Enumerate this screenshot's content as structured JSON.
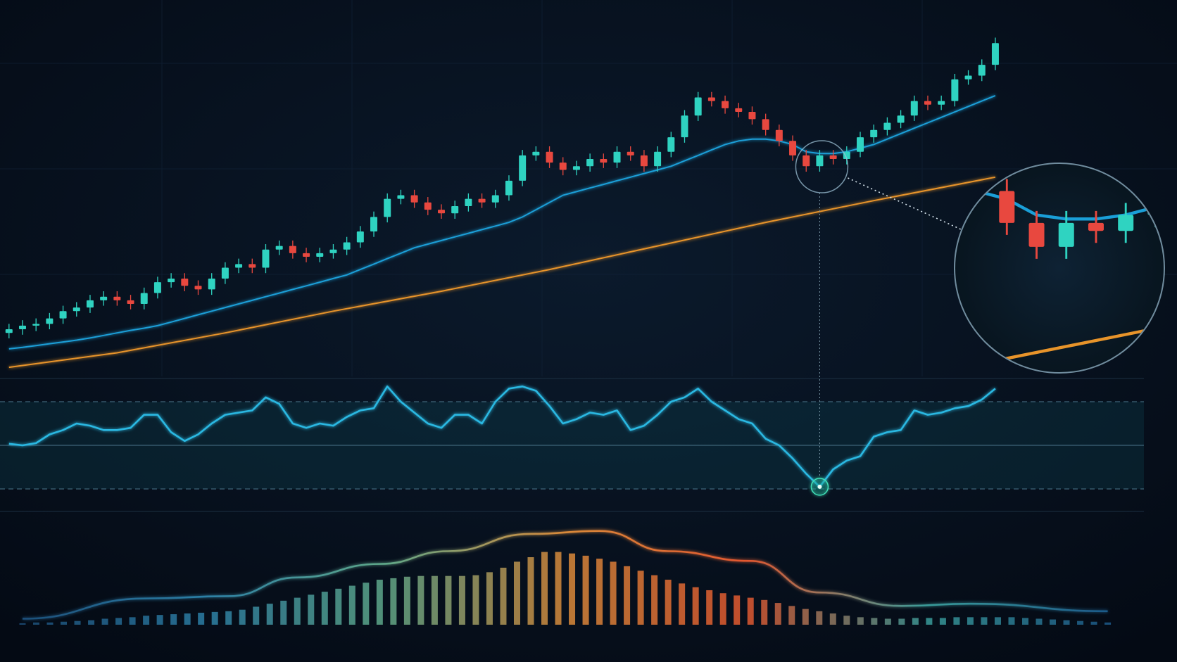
{
  "chart_data": [
    {
      "type": "candlestick",
      "up_color": "#2fd3c1",
      "down_color": "#e8483f",
      "ylim": [
        0,
        100
      ],
      "open": [
        12,
        13,
        14,
        14.5,
        16,
        18,
        19,
        21,
        22,
        21,
        20,
        23,
        26,
        27,
        25,
        24,
        27,
        30,
        31,
        30,
        35,
        36,
        34,
        33,
        34,
        35,
        37,
        40,
        44,
        49,
        50,
        48,
        46,
        45,
        47,
        49,
        48,
        50,
        54,
        61,
        62,
        59,
        57,
        58,
        60,
        59,
        62,
        61,
        58,
        62,
        66,
        72,
        77,
        76,
        74,
        73,
        71,
        68,
        65,
        61,
        58,
        61,
        60,
        62,
        66,
        68,
        70,
        72,
        76,
        75,
        76,
        82,
        83,
        86
      ],
      "high": [
        14.5,
        15.5,
        16,
        17.5,
        19.5,
        20.5,
        22.5,
        23.5,
        23.5,
        22.5,
        24.5,
        27.5,
        28.5,
        28.5,
        26.5,
        28.5,
        31.5,
        32.5,
        32.5,
        36.5,
        37.5,
        37.5,
        35.5,
        35.5,
        36.5,
        38.5,
        41.5,
        45.5,
        50.5,
        51.5,
        51.5,
        49.5,
        47.5,
        48.5,
        50.5,
        50.5,
        51.5,
        55.5,
        62.5,
        63.5,
        63.5,
        60.5,
        59.5,
        61.5,
        61.5,
        63.5,
        63.5,
        62.5,
        63.5,
        67.5,
        73.5,
        78.5,
        78.5,
        77.5,
        75.5,
        74.5,
        72.5,
        69.5,
        66.5,
        62.5,
        62.5,
        62.5,
        63.5,
        67.5,
        69.5,
        71.5,
        73.5,
        77.5,
        77.5,
        77.5,
        83.5,
        84.5,
        87.5,
        93.5
      ],
      "low": [
        10.5,
        11.5,
        12.5,
        13,
        14.5,
        16.5,
        17.5,
        19.5,
        19.5,
        18.5,
        18.5,
        21.5,
        24.5,
        23.5,
        22.5,
        22.5,
        25.5,
        28.5,
        28.5,
        28.5,
        33.5,
        32.5,
        31.5,
        31.5,
        32.5,
        33.5,
        35.5,
        38.5,
        42.5,
        47.5,
        46.5,
        44.5,
        43.5,
        43.5,
        45.5,
        46.5,
        46.5,
        48.5,
        52.5,
        59.5,
        57.5,
        55.5,
        55.5,
        56.5,
        57.5,
        57.5,
        59.5,
        56.5,
        56.5,
        60.5,
        64.5,
        70.5,
        74.5,
        72.5,
        71.5,
        69.5,
        66.5,
        63.5,
        59.5,
        56.5,
        56.5,
        58.5,
        58.5,
        60.5,
        64.5,
        66.5,
        68.5,
        70.5,
        73.5,
        73.5,
        74.5,
        80.5,
        81.5,
        84.5
      ],
      "close": [
        13,
        14,
        14.5,
        16,
        18,
        19,
        21,
        22,
        21,
        20,
        23,
        26,
        27,
        25,
        24,
        27,
        30,
        31,
        30,
        35,
        36,
        34,
        33,
        34,
        35,
        37,
        40,
        44,
        49,
        50,
        48,
        46,
        45,
        47,
        49,
        48,
        50,
        54,
        61,
        62,
        59,
        57,
        58,
        60,
        59,
        62,
        61,
        58,
        62,
        66,
        72,
        77,
        76,
        74,
        73,
        71,
        68,
        65,
        61,
        58,
        61,
        60,
        62,
        66,
        68,
        70,
        72,
        76,
        75,
        76,
        82,
        83,
        86,
        92
      ],
      "moving_averages": [
        {
          "color": "#1a9fd8",
          "values": [
            7.6,
            8,
            8.5,
            9,
            9.5,
            10,
            10.6,
            11.3,
            12,
            12.7,
            13.3,
            14,
            15,
            16,
            17,
            18,
            19,
            20,
            21,
            22,
            23,
            24,
            25,
            26,
            27,
            28,
            29.5,
            31,
            32.5,
            34,
            35.5,
            36.5,
            37.5,
            38.5,
            39.5,
            40.5,
            41.5,
            42.5,
            44,
            46,
            48,
            50,
            51,
            52,
            53,
            54,
            55,
            56,
            57,
            58,
            59.5,
            61,
            62.5,
            64,
            65,
            65.5,
            65.5,
            65,
            64,
            62,
            61.5,
            61.5,
            62,
            63,
            64,
            65.5,
            67,
            68.5,
            70,
            71.5,
            73,
            74.5,
            76,
            77.5
          ]
        },
        {
          "color": "#e8942a",
          "x": [
            0,
            8,
            16,
            24,
            32,
            40,
            48,
            56,
            64,
            73
          ],
          "values": [
            2.5,
            6.5,
            12,
            18,
            23.5,
            29.5,
            36,
            42.5,
            48.5,
            55
          ]
        }
      ]
    },
    {
      "type": "line",
      "color": "#2bb8e2",
      "ylim": [
        20,
        80
      ],
      "levels": [
        70,
        50,
        30
      ],
      "values": [
        50.7,
        50,
        51,
        55,
        57,
        60,
        59,
        57,
        57,
        58,
        64,
        64,
        56,
        52,
        55,
        60,
        64,
        65,
        66,
        72,
        69,
        60,
        58,
        60,
        59,
        63,
        66,
        67,
        77,
        70,
        65,
        60,
        58,
        64,
        64,
        60,
        70,
        76,
        77,
        75,
        68,
        60,
        62,
        65,
        64,
        66,
        57,
        59,
        64,
        70,
        72,
        76,
        70,
        66,
        62,
        60,
        53,
        50,
        44,
        37,
        31,
        39,
        43,
        45,
        54,
        56,
        57,
        66,
        64,
        65,
        67,
        68,
        71,
        76
      ]
    },
    {
      "type": "bar",
      "ylim": [
        0,
        130
      ],
      "color_stops": [
        "#1d4f7a",
        "#2c7fa6",
        "#5fa88a",
        "#d98a3a",
        "#e2572f",
        "#3a9c9a",
        "#1d5a8a"
      ],
      "values": [
        2,
        3,
        3,
        4,
        5,
        6,
        8,
        9,
        10,
        12,
        13,
        14,
        15,
        16,
        17,
        18,
        20,
        24,
        28,
        32,
        36,
        40,
        44,
        48,
        52,
        56,
        60,
        62,
        64,
        65,
        65,
        65,
        65,
        66,
        70,
        76,
        84,
        90,
        97,
        97,
        95,
        92,
        88,
        84,
        78,
        72,
        66,
        60,
        55,
        50,
        46,
        42,
        39,
        36,
        33,
        29,
        25,
        21,
        18,
        15,
        12,
        10,
        9,
        8,
        8,
        9,
        9,
        9,
        10,
        10,
        10,
        10,
        10,
        9,
        8,
        7,
        6,
        5,
        4,
        3
      ],
      "signal": {
        "x": [
          0,
          9,
          15,
          20,
          26,
          31,
          37,
          42,
          47,
          53,
          58,
          64,
          69,
          79
        ],
        "values": [
          8,
          35,
          38,
          63,
          81,
          98,
          121,
          125,
          98,
          85,
          43,
          25,
          28,
          18
        ]
      }
    }
  ]
}
